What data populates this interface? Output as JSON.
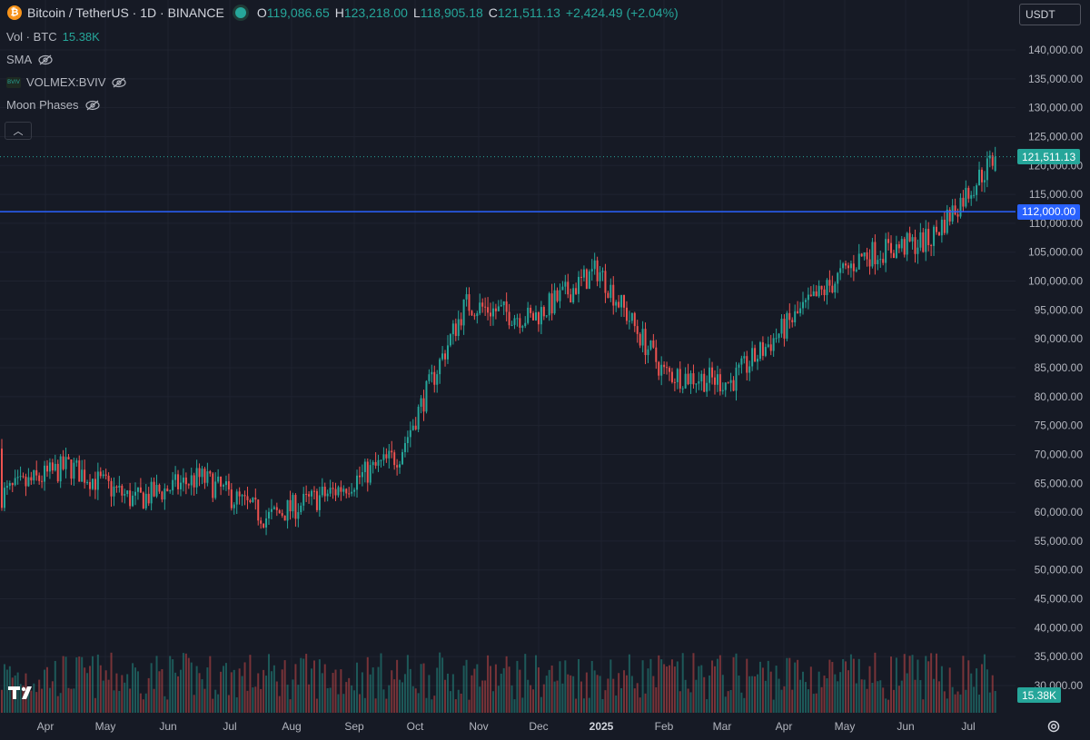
{
  "header": {
    "symbol": "Bitcoin / TetherUS · 1D · BINANCE",
    "btc_icon": "₿",
    "ohlc": {
      "o_label": "O",
      "o_value": "119,086.65",
      "h_label": "H",
      "h_value": "123,218.00",
      "l_label": "L",
      "l_value": "118,905.18",
      "c_label": "C",
      "c_value": "121,511.13",
      "change": "+2,424.49 (+2.04%)"
    }
  },
  "legend": {
    "vol_label": "Vol · BTC",
    "vol_value": "15.38K",
    "sma_label": "SMA",
    "volmex_label": "VOLMEX:BVIV",
    "moon_label": "Moon Phases"
  },
  "currency_button": "USDT",
  "price_axis": {
    "ticks": [
      "140,000.00",
      "135,000.00",
      "130,000.00",
      "125,000.00",
      "120,000.00",
      "115,000.00",
      "110,000.00",
      "105,000.00",
      "100,000.00",
      "95,000.00",
      "90,000.00",
      "85,000.00",
      "80,000.00",
      "75,000.00",
      "70,000.00",
      "65,000.00",
      "60,000.00",
      "55,000.00",
      "50,000.00",
      "45,000.00",
      "40,000.00",
      "35,000.00",
      "30,000.00"
    ],
    "last_price_tag": "121,511.13",
    "level_tag": "112,000.00",
    "volume_tag": "15.38K"
  },
  "time_axis": {
    "ticks": [
      "Apr",
      "May",
      "Jun",
      "Jul",
      "Aug",
      "Sep",
      "Oct",
      "Nov",
      "Dec",
      "2025",
      "Feb",
      "Mar",
      "Apr",
      "May",
      "Jun",
      "Jul"
    ]
  },
  "colors": {
    "background": "#161a25",
    "up": "#26a69a",
    "down": "#ef5350",
    "level_line": "#2962ff",
    "grid": "#1f2330"
  },
  "icons": {
    "logo": "tradingview-logo-icon",
    "settings": "gear-icon",
    "visibility": "eye-off-icon"
  },
  "chart_data": {
    "type": "candlestick",
    "symbol": "BTC/USDT",
    "interval": "1D",
    "ylim": [
      30000,
      140000
    ],
    "horizontal_level": 112000,
    "last_price": 121511.13,
    "x_ticks": [
      "Apr",
      "May",
      "Jun",
      "Jul",
      "Aug",
      "Sep",
      "Oct",
      "Nov",
      "Dec",
      "2025",
      "Feb",
      "Mar",
      "Apr",
      "May",
      "Jun",
      "Jul"
    ],
    "approx_closes_by_month": [
      {
        "month": "Apr 2024",
        "close": 63000
      },
      {
        "month": "May 2024",
        "close": 68000
      },
      {
        "month": "Jun 2024",
        "close": 62000
      },
      {
        "month": "Jul 2024",
        "close": 66000
      },
      {
        "month": "Aug 2024",
        "close": 59000
      },
      {
        "month": "Sep 2024",
        "close": 63500
      },
      {
        "month": "Oct 2024",
        "close": 70000
      },
      {
        "month": "Nov 2024",
        "close": 96000
      },
      {
        "month": "Dec 2024",
        "close": 93500
      },
      {
        "month": "Jan 2025",
        "close": 102000
      },
      {
        "month": "Feb 2025",
        "close": 84000
      },
      {
        "month": "Mar 2025",
        "close": 82500
      },
      {
        "month": "Apr 2025",
        "close": 94000
      },
      {
        "month": "May 2025",
        "close": 104500
      },
      {
        "month": "Jun 2025",
        "close": 107000
      },
      {
        "month": "Jul 2025",
        "close": 121511
      }
    ]
  }
}
